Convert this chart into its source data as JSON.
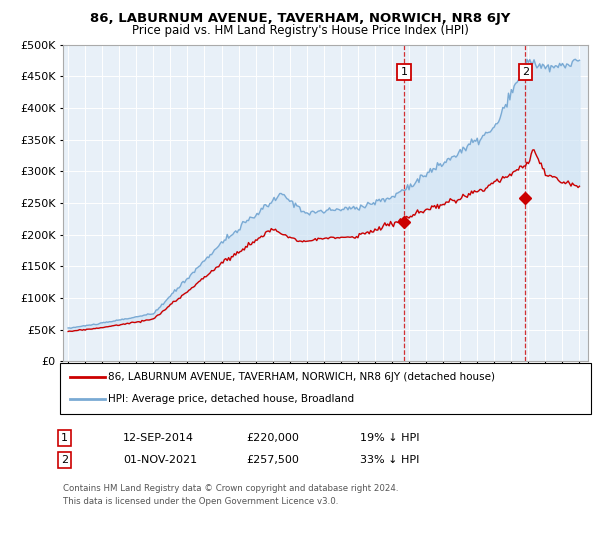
{
  "title": "86, LABURNUM AVENUE, TAVERHAM, NORWICH, NR8 6JY",
  "subtitle": "Price paid vs. HM Land Registry's House Price Index (HPI)",
  "legend_line1": "86, LABURNUM AVENUE, TAVERHAM, NORWICH, NR8 6JY (detached house)",
  "legend_line2": "HPI: Average price, detached house, Broadland",
  "annotation1_date": "12-SEP-2014",
  "annotation1_price": "£220,000",
  "annotation1_hpi": "19% ↓ HPI",
  "annotation2_date": "01-NOV-2021",
  "annotation2_price": "£257,500",
  "annotation2_hpi": "33% ↓ HPI",
  "footnote1": "Contains HM Land Registry data © Crown copyright and database right 2024.",
  "footnote2": "This data is licensed under the Open Government Licence v3.0.",
  "hpi_color": "#7aaad4",
  "hpi_fill_color": "#d0e4f5",
  "price_color": "#cc0000",
  "annotation_box_color": "#cc0000",
  "background_color": "#e8f0f8",
  "grid_color": "#cccccc",
  "ylim": [
    0,
    500000
  ],
  "yticks": [
    0,
    50000,
    100000,
    150000,
    200000,
    250000,
    300000,
    350000,
    400000,
    450000,
    500000
  ],
  "year_start": 1995,
  "year_end": 2025,
  "transaction1_year": 2014.7,
  "transaction1_value": 220000,
  "transaction2_year": 2021.83,
  "transaction2_value": 257500
}
